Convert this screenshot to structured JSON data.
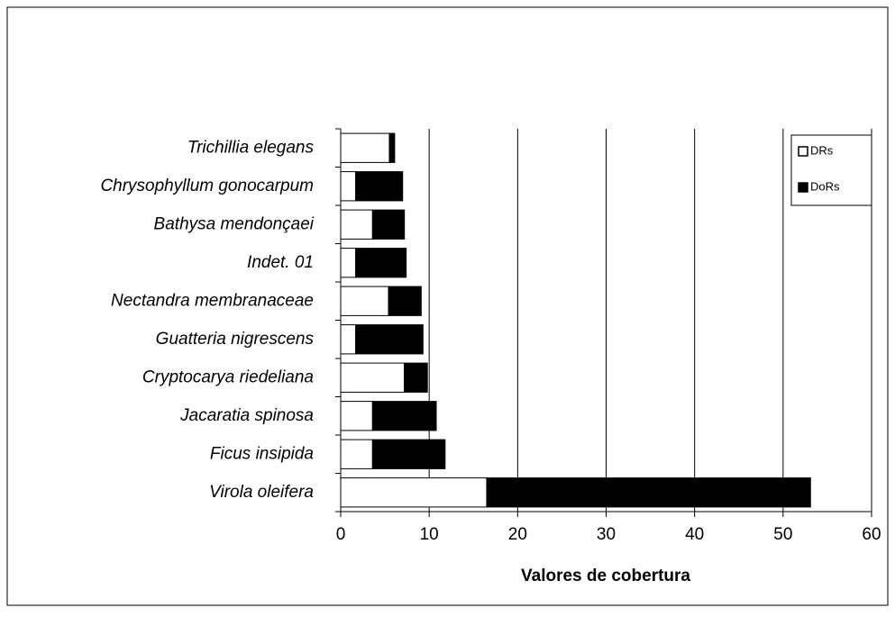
{
  "chart_data": {
    "type": "bar",
    "orientation": "horizontal",
    "stacked": true,
    "x_label": "Valores de cobertura",
    "categories": [
      "Trichillia elegans",
      "Chrysophyllum gonocarpum",
      "Bathysa mendonçaei",
      "Indet. 01",
      "Nectandra membranaceae",
      "Guatteria nigrescens",
      "Cryptocarya riedeliana",
      "Jacaratia spinosa",
      "Ficus insipida",
      "Virola oleifera"
    ],
    "series": [
      {
        "name": "DRs",
        "color": "#ffffff",
        "values": [
          5.5,
          1.7,
          3.6,
          1.7,
          5.4,
          1.7,
          7.2,
          3.6,
          3.6,
          16.5
        ]
      },
      {
        "name": "DoRs",
        "color": "#000000",
        "values": [
          0.6,
          5.3,
          3.6,
          5.7,
          3.7,
          7.6,
          2.6,
          7.2,
          8.2,
          36.6
        ]
      }
    ],
    "xlim": [
      0,
      60
    ],
    "xticks": [
      0,
      10,
      20,
      30,
      40,
      50,
      60
    ],
    "grid": true,
    "legend": "upper right"
  }
}
